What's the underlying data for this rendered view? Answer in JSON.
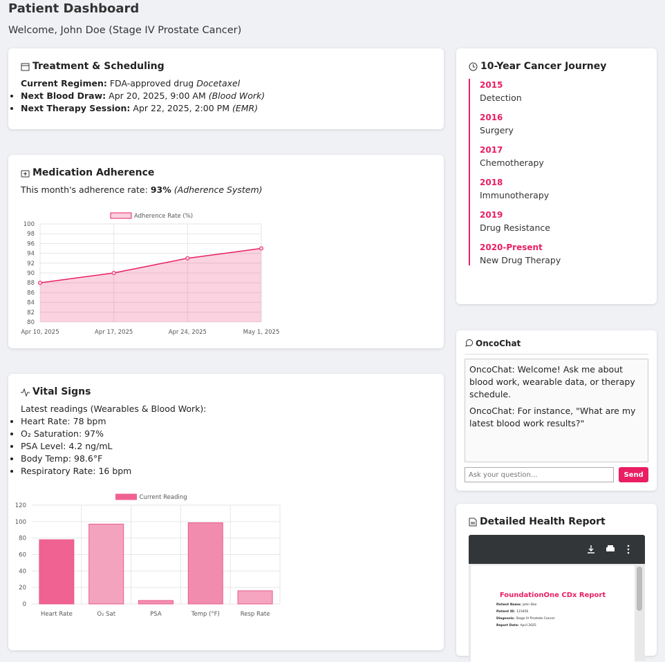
{
  "header": {
    "title": "Patient Dashboard",
    "welcome": "Welcome, John Doe (Stage IV Prostate Cancer)"
  },
  "treatment": {
    "title": "Treatment & Scheduling",
    "items": [
      {
        "label": "Current Regimen:",
        "text": "FDA-approved drug",
        "em": "Docetaxel"
      },
      {
        "label": "Next Blood Draw:",
        "text": "Apr 20, 2025, 9:00 AM",
        "em": "(Blood Work)"
      },
      {
        "label": "Next Therapy Session:",
        "text": "Apr 22, 2025, 2:00 PM",
        "em": "(EMR)"
      }
    ]
  },
  "adherence": {
    "title": "Medication Adherence",
    "text": "This month's adherence rate:",
    "rate": "93%",
    "source": "(Adherence System)"
  },
  "vitals": {
    "title": "Vital Signs",
    "intro": "Latest readings (Wearables & Blood Work):",
    "items": [
      "Heart Rate: 78 bpm",
      "O₂ Saturation: 97%",
      "PSA Level: 4.2 ng/mL",
      "Body Temp: 98.6°F",
      "Respiratory Rate: 16 bpm"
    ]
  },
  "chart_data": [
    {
      "type": "line",
      "series": [
        {
          "name": "Adherence Rate (%)",
          "color": "#e91e63",
          "values": [
            88,
            90,
            93,
            95
          ]
        }
      ],
      "categories": [
        "Apr 10, 2025",
        "Apr 17, 2025",
        "Apr 24, 2025",
        "May 1, 2025"
      ],
      "ylim": [
        80,
        100
      ],
      "yticks": [
        80,
        82,
        84,
        86,
        88,
        90,
        92,
        94,
        96,
        98,
        100
      ],
      "grid": true
    },
    {
      "type": "bar",
      "series": [
        {
          "name": "Current Reading",
          "color": "#f06292",
          "values": [
            78,
            97,
            4.2,
            98.6,
            16
          ]
        }
      ],
      "colors": [
        "#f06292",
        "#f4a3bf",
        "#f48fb1",
        "#f28cae",
        "#f5a5c0"
      ],
      "categories": [
        "Heart Rate",
        "O₂ Sat",
        "PSA",
        "Temp (°F)",
        "Resp Rate"
      ],
      "ylim": [
        0,
        120
      ],
      "yticks": [
        0,
        20,
        40,
        60,
        80,
        100,
        120
      ],
      "grid": true
    }
  ],
  "journey": {
    "title": "10-Year Cancer Journey",
    "events": [
      {
        "year": "2015",
        "label": "Detection"
      },
      {
        "year": "2016",
        "label": "Surgery"
      },
      {
        "year": "2017",
        "label": "Chemotherapy"
      },
      {
        "year": "2018",
        "label": "Immunotherapy"
      },
      {
        "year": "2019",
        "label": "Drug Resistance"
      },
      {
        "year": "2020-Present",
        "label": "New Drug Therapy"
      }
    ]
  },
  "chat": {
    "title": "OncoChat",
    "messages": [
      "OncoChat: Welcome! Ask me about blood work, wearable data, or therapy schedule.",
      "OncoChat: For instance, \"What are my latest blood work results?\""
    ],
    "placeholder": "Ask your question...",
    "button": "Send"
  },
  "report": {
    "title": "Detailed Health Report",
    "doc_title": "FoundationOne CDx Report",
    "fields": [
      {
        "label": "Patient Name:",
        "value": "John Doe"
      },
      {
        "label": "Patient ID:",
        "value": "123456"
      },
      {
        "label": "Diagnosis:",
        "value": "Stage IV Prostate Cancer"
      },
      {
        "label": "Report Date:",
        "value": "April 2025"
      }
    ]
  }
}
